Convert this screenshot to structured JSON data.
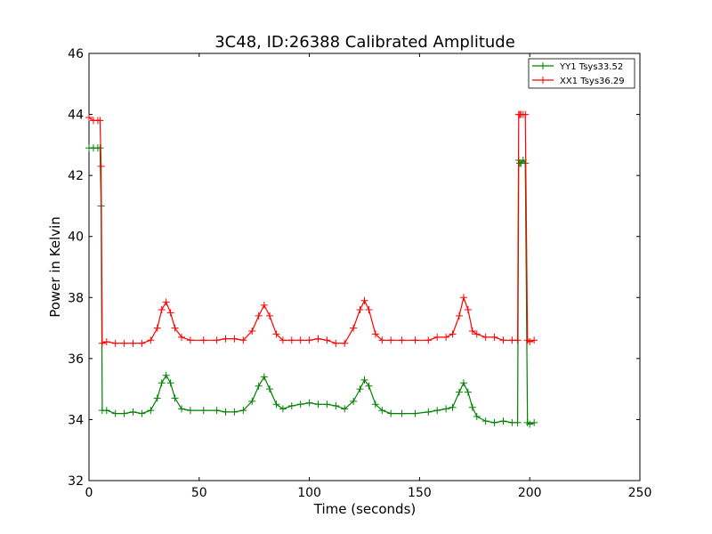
{
  "chart_data": {
    "type": "line",
    "title": "3C48, ID:26388 Calibrated Amplitude",
    "xlabel": "Time (seconds)",
    "ylabel": "Power in Kelvin",
    "xlim": [
      0,
      250
    ],
    "ylim": [
      32,
      46
    ],
    "xticks": [
      0,
      50,
      100,
      150,
      200,
      250
    ],
    "yticks": [
      32,
      34,
      36,
      38,
      40,
      42,
      44,
      46
    ],
    "grid": false,
    "legend_position": "top-right",
    "marker": "plus",
    "series": [
      {
        "name": "YY1 Tsys33.52",
        "color": "#008000",
        "x": [
          0,
          2,
          4,
          5,
          5.5,
          6,
          8,
          12,
          16,
          20,
          24,
          28,
          31,
          33,
          35,
          37,
          39,
          42,
          46,
          52,
          58,
          62,
          66,
          70,
          74,
          77,
          79.5,
          82,
          85,
          88,
          92,
          96,
          100,
          104,
          108,
          112,
          116,
          120,
          123,
          125,
          127,
          130,
          133,
          137,
          142,
          148,
          154,
          158,
          162,
          165,
          168,
          170,
          172,
          174,
          176,
          180,
          184,
          188,
          192,
          194.5,
          195,
          195.5,
          196,
          197,
          198,
          199,
          200,
          202
        ],
        "y": [
          42.9,
          42.9,
          42.9,
          42.9,
          41.0,
          34.3,
          34.3,
          34.2,
          34.2,
          34.25,
          34.2,
          34.3,
          34.7,
          35.2,
          35.45,
          35.2,
          34.7,
          34.35,
          34.3,
          34.3,
          34.3,
          34.25,
          34.25,
          34.3,
          34.6,
          35.1,
          35.4,
          35.0,
          34.5,
          34.35,
          34.45,
          34.5,
          34.55,
          34.5,
          34.5,
          34.45,
          34.35,
          34.6,
          35.0,
          35.3,
          35.1,
          34.5,
          34.3,
          34.2,
          34.2,
          34.2,
          34.25,
          34.3,
          34.35,
          34.4,
          34.9,
          35.2,
          34.9,
          34.4,
          34.1,
          33.95,
          33.9,
          33.95,
          33.9,
          33.9,
          42.5,
          42.4,
          42.4,
          42.5,
          42.4,
          33.9,
          33.85,
          33.9
        ]
      },
      {
        "name": "XX1 Tsys36.29",
        "color": "#ff0000",
        "x": [
          0,
          2,
          4,
          5,
          5.5,
          6,
          8,
          12,
          16,
          20,
          24,
          28,
          31,
          33,
          35,
          37,
          39,
          42,
          46,
          52,
          58,
          62,
          66,
          70,
          74,
          77,
          79.5,
          82,
          85,
          88,
          92,
          96,
          100,
          104,
          108,
          112,
          116,
          120,
          123,
          125,
          127,
          130,
          133,
          137,
          142,
          148,
          154,
          158,
          162,
          165,
          168,
          170,
          172,
          174,
          176,
          180,
          184,
          188,
          192,
          194.5,
          195,
          195.5,
          196,
          197,
          198,
          199,
          200,
          202
        ],
        "y": [
          43.9,
          43.8,
          43.8,
          43.8,
          42.3,
          36.5,
          36.55,
          36.5,
          36.5,
          36.5,
          36.5,
          36.6,
          37.0,
          37.6,
          37.85,
          37.5,
          37.0,
          36.7,
          36.6,
          36.6,
          36.6,
          36.65,
          36.65,
          36.6,
          36.9,
          37.4,
          37.75,
          37.4,
          36.8,
          36.6,
          36.6,
          36.6,
          36.6,
          36.65,
          36.6,
          36.5,
          36.5,
          37.0,
          37.6,
          37.9,
          37.6,
          36.8,
          36.6,
          36.6,
          36.6,
          36.6,
          36.6,
          36.7,
          36.7,
          36.8,
          37.4,
          38.0,
          37.6,
          36.9,
          36.8,
          36.7,
          36.7,
          36.6,
          36.6,
          36.6,
          44.0,
          44.0,
          44.0,
          44.0,
          44.0,
          36.6,
          36.55,
          36.6
        ]
      }
    ]
  }
}
